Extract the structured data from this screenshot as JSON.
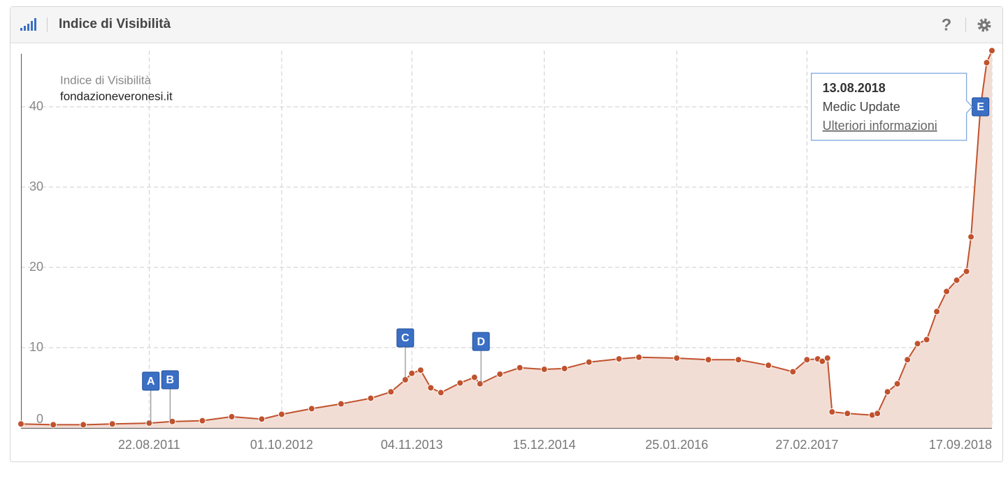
{
  "header": {
    "title": "Indice di Visibilità"
  },
  "chart_data": {
    "type": "line",
    "legend_title": "Indice di Visibilità",
    "x": [
      "25.07.2010",
      "01.11.2010",
      "01.02.2011",
      "01.05.2011",
      "22.08.2011",
      "01.11.2011",
      "01.02.2012",
      "01.05.2012",
      "01.08.2012",
      "01.10.2012",
      "01.01.2013",
      "01.04.2013",
      "01.07.2013",
      "01.09.2013",
      "15.10.2013",
      "04.11.2013",
      "01.12.2013",
      "01.01.2014",
      "01.02.2014",
      "01.04.2014",
      "15.05.2014",
      "01.06.2014",
      "01.08.2014",
      "01.10.2014",
      "15.12.2014",
      "15.02.2015",
      "01.05.2015",
      "01.08.2015",
      "01.10.2015",
      "25.01.2016",
      "01.05.2016",
      "01.08.2016",
      "01.11.2016",
      "15.01.2017",
      "27.02.2017",
      "01.04.2017",
      "15.04.2017",
      "01.05.2017",
      "15.05.2017",
      "01.07.2017",
      "15.09.2017",
      "01.10.2017",
      "01.11.2017",
      "01.12.2017",
      "01.01.2018",
      "01.02.2018",
      "01.03.2018",
      "01.04.2018",
      "01.05.2018",
      "01.06.2018",
      "01.07.2018",
      "15.07.2018",
      "13.08.2018",
      "01.09.2018",
      "17.09.2018"
    ],
    "series": [
      {
        "name": "fondazioneveronesi.it",
        "color": "#c0522d",
        "values": [
          0.5,
          0.4,
          0.4,
          0.5,
          0.6,
          0.8,
          0.9,
          1.4,
          1.1,
          1.7,
          2.4,
          3.0,
          3.7,
          4.5,
          6.0,
          6.8,
          7.2,
          5.0,
          4.4,
          5.6,
          6.3,
          5.5,
          6.7,
          7.5,
          7.3,
          7.4,
          8.2,
          8.6,
          8.8,
          8.7,
          8.5,
          8.5,
          7.8,
          7.0,
          8.5,
          8.6,
          8.3,
          8.7,
          2.0,
          1.8,
          1.6,
          1.8,
          4.5,
          5.5,
          8.5,
          10.5,
          11.0,
          14.5,
          17.0,
          18.4,
          19.5,
          23.8,
          40.0,
          45.5,
          47.0
        ]
      }
    ],
    "area_color": "#f2ddd5",
    "xlim": [
      "25.07.2010",
      "17.09.2018"
    ],
    "xticks": [
      "22.08.2011",
      "01.10.2012",
      "04.11.2013",
      "15.12.2014",
      "25.01.2016",
      "27.02.2017",
      "17.09.2018"
    ],
    "ylim": [
      0,
      47
    ],
    "yticks": [
      0,
      10,
      20,
      30,
      40
    ],
    "grid": true,
    "events": [
      {
        "label": "A",
        "x": "27.08.2011"
      },
      {
        "label": "B",
        "x": "25.10.2011"
      },
      {
        "label": "C",
        "x": "15.10.2013"
      },
      {
        "label": "D",
        "x": "04.06.2014"
      },
      {
        "label": "E",
        "x": "13.08.2018",
        "title": "13.08.2018",
        "text": "Medic Update",
        "link": "Ulteriori informazioni"
      }
    ]
  }
}
